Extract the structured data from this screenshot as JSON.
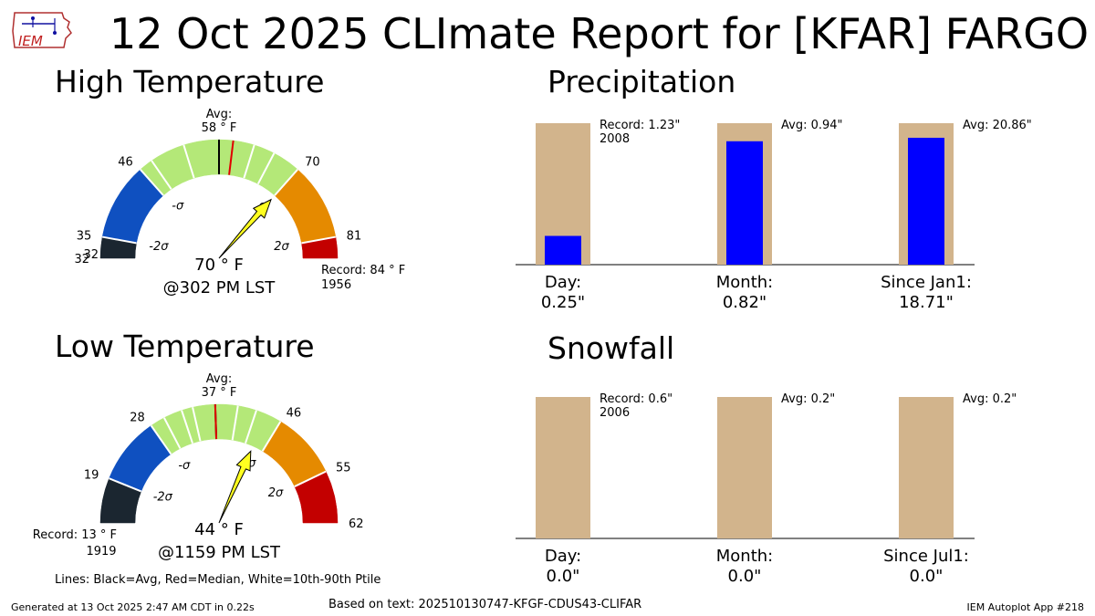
{
  "title": "12 Oct 2025 CLImate Report for [KFAR] FARGO",
  "logo_text": "IEM",
  "footer": {
    "generated": "Generated at 13 Oct 2025 2:47 AM CDT in 0.22s",
    "source": "Based on text: 202510130747-KFGF-CDUS43-CLIFAR",
    "app": "IEM Autoplot App #218"
  },
  "lines_note": "Lines: Black=Avg, Red=Median, White=10th-90th Ptile",
  "colors": {
    "band_dark": "#1b2630",
    "band_blue": "#0f50c0",
    "band_green": "#b4e878",
    "band_orange": "#e58a00",
    "band_red": "#c30000",
    "needle": "#ffff20",
    "precip_bar": "#0000ff",
    "context_bar": "#d2b48c",
    "median": "#e00000"
  },
  "chart_data": [
    {
      "type": "gauge",
      "title": "High Temperature",
      "min": 32,
      "max": 84,
      "bands": [
        {
          "from": 32,
          "to": 35,
          "color": "#1b2630"
        },
        {
          "from": 35,
          "to": 46,
          "color": "#0f50c0"
        },
        {
          "from": 46,
          "to": 70,
          "color": "#b4e878"
        },
        {
          "from": 70,
          "to": 81,
          "color": "#e58a00"
        },
        {
          "from": 81,
          "to": 84,
          "color": "#c30000"
        }
      ],
      "tick_labels": [
        "32",
        "35",
        "46",
        "70",
        "81"
      ],
      "sigma_labels": [
        "-2σ",
        "-σ",
        "σ",
        "2σ"
      ],
      "sigma_values": [
        35,
        46,
        70,
        81
      ],
      "average": 58,
      "median": 60,
      "percentile_lines": [
        48,
        53,
        63,
        66
      ],
      "value": 70,
      "avg_label": "Avg:",
      "avg_value_label": "58 ° F",
      "value_label": "70 ° F",
      "time_label": "@302 PM LST",
      "record_label": "Record: 84 ° F",
      "record_year": "1956",
      "record_side": "right"
    },
    {
      "type": "gauge",
      "title": "Low Temperature",
      "min": 13,
      "max": 62,
      "bands": [
        {
          "from": 13,
          "to": 19,
          "color": "#1b2630"
        },
        {
          "from": 19,
          "to": 28,
          "color": "#0f50c0"
        },
        {
          "from": 28,
          "to": 46,
          "color": "#b4e878"
        },
        {
          "from": 46,
          "to": 55,
          "color": "#e58a00"
        },
        {
          "from": 55,
          "to": 62,
          "color": "#c30000"
        }
      ],
      "tick_labels": [
        "19",
        "28",
        "46",
        "55",
        "62"
      ],
      "sigma_labels": [
        "-2σ",
        "-σ",
        "σ",
        "2σ"
      ],
      "sigma_values": [
        19,
        28,
        46,
        55
      ],
      "average": 37,
      "median": 37,
      "percentile_lines": [
        30,
        32.5,
        34,
        40,
        42.5
      ],
      "value": 44,
      "avg_label": "Avg:",
      "avg_value_label": "37 ° F",
      "value_label": "44 ° F",
      "time_label": "@1159 PM LST",
      "record_label": "Record: 13 ° F",
      "record_year": "1919",
      "record_side": "left"
    },
    {
      "type": "bar",
      "title": "Precipitation",
      "categories": [
        "Day:",
        "Month:",
        "Since Jan1:"
      ],
      "value_labels": [
        "0.25\"",
        "0.82\"",
        "18.71\""
      ],
      "values": [
        0.25,
        0.82,
        18.71
      ],
      "context_values": [
        1.23,
        0.94,
        20.86
      ],
      "context_labels": [
        "Record: 1.23\"",
        "Avg: 0.94\"",
        "Avg: 20.86\""
      ],
      "context_years": [
        "2008",
        "",
        ""
      ]
    },
    {
      "type": "bar",
      "title": "Snowfall",
      "categories": [
        "Day:",
        "Month:",
        "Since Jul1:"
      ],
      "value_labels": [
        "0.0\"",
        "0.0\"",
        "0.0\""
      ],
      "values": [
        0.0,
        0.0,
        0.0
      ],
      "context_values": [
        0.6,
        0.2,
        0.2
      ],
      "context_labels": [
        "Record: 0.6\"",
        "Avg: 0.2\"",
        "Avg: 0.2\""
      ],
      "context_years": [
        "2006",
        "",
        ""
      ]
    }
  ]
}
